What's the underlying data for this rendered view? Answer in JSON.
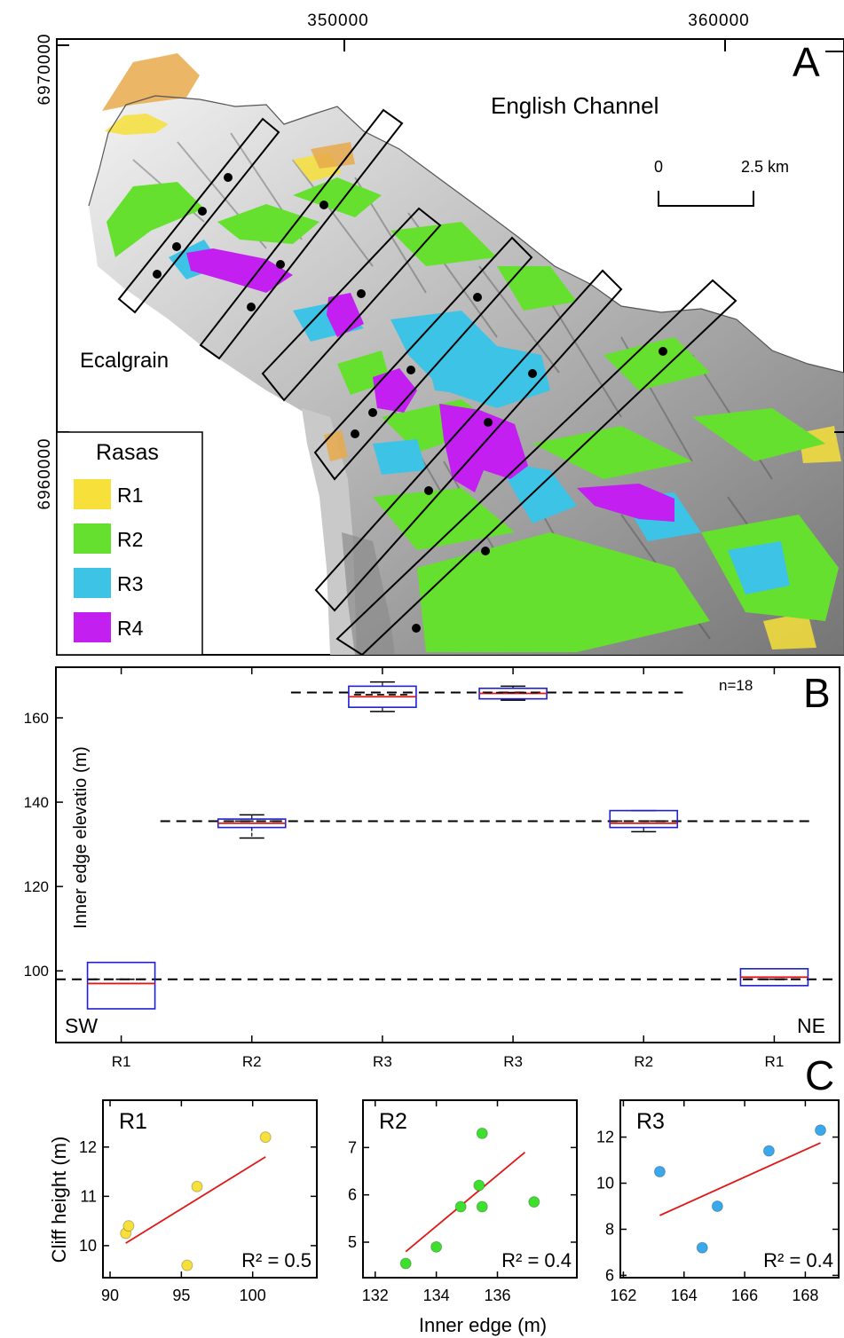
{
  "panels": {
    "a": {
      "letter": "A",
      "ticks_x": [
        "350000",
        "360000"
      ],
      "ticks_y": [
        "6970000",
        "6960000"
      ],
      "sea_label": "English Channel",
      "place_label": "Ecalgrain",
      "scale": {
        "start": "0",
        "end": "2.5 km"
      },
      "legend": {
        "title": "Rasas",
        "items": [
          {
            "label": "R1",
            "color": "#f7e03a"
          },
          {
            "label": "R2",
            "color": "#66e02e"
          },
          {
            "label": "R3",
            "color": "#3cc3e6"
          },
          {
            "label": "R4",
            "color": "#c21ff0"
          }
        ]
      }
    },
    "b": {
      "letter": "B"
    },
    "c": {
      "letter": "C"
    }
  },
  "chart_data": [
    {
      "type": "box",
      "ylabel": "Inner edge elevatio (m)",
      "categories": [
        "R1",
        "R2",
        "R3",
        "R3",
        "R2",
        "R1"
      ],
      "ylim": [
        83,
        172
      ],
      "yticks": [
        100,
        120,
        140,
        160
      ],
      "note": "n=18",
      "corner_labels": {
        "left": "SW",
        "right": "NE"
      },
      "boxes": [
        {
          "q1": 91,
          "q3": 102,
          "median": 97,
          "mean": 98,
          "whisker_low": null,
          "whisker_high": null
        },
        {
          "q1": 134,
          "q3": 136,
          "median": 135,
          "mean": 135.5,
          "whisker_low": 131.5,
          "whisker_high": 137
        },
        {
          "q1": 162.5,
          "q3": 167.5,
          "median": 165,
          "mean": 165.5,
          "whisker_low": 161.5,
          "whisker_high": 168.5
        },
        {
          "q1": 164.5,
          "q3": 167,
          "median": 165.8,
          "mean": 166,
          "whisker_low": 164.2,
          "whisker_high": 167.5
        },
        {
          "q1": 134,
          "q3": 138,
          "median": 135,
          "mean": 135.5,
          "whisker_low": 133,
          "whisker_high": 138
        },
        {
          "q1": 96.5,
          "q3": 100.5,
          "median": 98.5,
          "mean": 98,
          "whisker_low": null,
          "whisker_high": null
        }
      ],
      "reference_lines": [
        {
          "y": 166,
          "from": 1.8,
          "to": 4.8
        },
        {
          "y": 135.5,
          "from": 0.8,
          "to": 5.8
        },
        {
          "y": 98,
          "from": 0,
          "to": 6
        }
      ],
      "box_color": "#1f1fd0",
      "median_color": "#e01818"
    },
    {
      "type": "scatter",
      "title": "R1",
      "xlim": [
        89.5,
        104.5
      ],
      "ylim": [
        9.35,
        12.95
      ],
      "xticks": [
        90,
        95,
        100
      ],
      "yticks": [
        10,
        11,
        12
      ],
      "points": [
        [
          91.1,
          10.25
        ],
        [
          91.3,
          10.4
        ],
        [
          95.4,
          9.6
        ],
        [
          96.1,
          11.2
        ],
        [
          100.9,
          12.2
        ]
      ],
      "fit": [
        [
          91.1,
          10.05
        ],
        [
          100.9,
          11.8
        ]
      ],
      "r2_label": "R² = 0.5",
      "color": "#f7e03a",
      "ylabel": "Cliff height (m)"
    },
    {
      "type": "scatter",
      "title": "R2",
      "xlim": [
        131.6,
        138.6
      ],
      "ylim": [
        4.25,
        8.0
      ],
      "xticks": [
        132,
        134,
        136
      ],
      "yticks": [
        5,
        6,
        7
      ],
      "points": [
        [
          133.0,
          4.55
        ],
        [
          134.0,
          4.9
        ],
        [
          134.8,
          5.75
        ],
        [
          135.4,
          6.2
        ],
        [
          135.5,
          7.3
        ],
        [
          135.5,
          5.75
        ],
        [
          137.2,
          5.85
        ]
      ],
      "fit": [
        [
          133.0,
          4.8
        ],
        [
          136.9,
          6.9
        ]
      ],
      "r2_label": "R² = 0.4",
      "color": "#3ee02e"
    },
    {
      "type": "scatter",
      "title": "R3",
      "xlim": [
        161.9,
        169.1
      ],
      "ylim": [
        5.9,
        13.6
      ],
      "xticks": [
        162,
        164,
        166,
        168
      ],
      "yticks": [
        6,
        8,
        10,
        12
      ],
      "points": [
        [
          163.2,
          10.5
        ],
        [
          164.6,
          7.2
        ],
        [
          165.1,
          9.0
        ],
        [
          166.8,
          11.4
        ],
        [
          168.5,
          12.3
        ]
      ],
      "fit": [
        [
          163.2,
          8.6
        ],
        [
          168.5,
          11.75
        ]
      ],
      "r2_label": "R² = 0.4",
      "color": "#3aa8ec"
    }
  ],
  "shared_xlabel": "Inner edge (m)"
}
